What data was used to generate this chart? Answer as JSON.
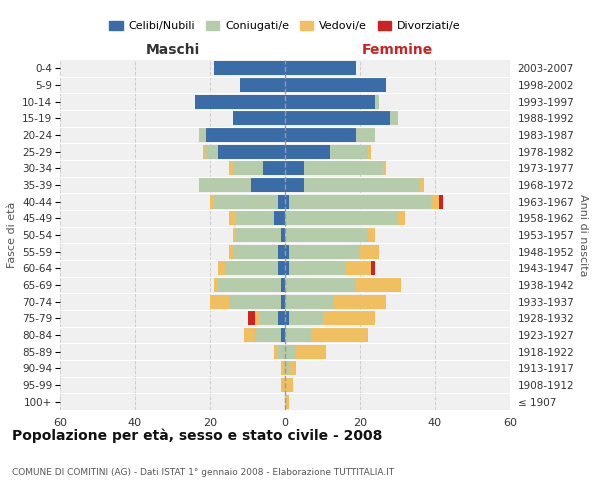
{
  "age_groups": [
    "100+",
    "95-99",
    "90-94",
    "85-89",
    "80-84",
    "75-79",
    "70-74",
    "65-69",
    "60-64",
    "55-59",
    "50-54",
    "45-49",
    "40-44",
    "35-39",
    "30-34",
    "25-29",
    "20-24",
    "15-19",
    "10-14",
    "5-9",
    "0-4"
  ],
  "birth_years": [
    "≤ 1907",
    "1908-1912",
    "1913-1917",
    "1918-1922",
    "1923-1927",
    "1928-1932",
    "1933-1937",
    "1938-1942",
    "1943-1947",
    "1948-1952",
    "1953-1957",
    "1958-1962",
    "1963-1967",
    "1968-1972",
    "1973-1977",
    "1978-1982",
    "1983-1987",
    "1988-1992",
    "1993-1997",
    "1998-2002",
    "2003-2007"
  ],
  "males": {
    "celibe": [
      0,
      0,
      0,
      0,
      1,
      2,
      1,
      1,
      2,
      2,
      1,
      3,
      2,
      9,
      6,
      18,
      21,
      14,
      24,
      12,
      19
    ],
    "coniugato": [
      0,
      0,
      0,
      2,
      7,
      5,
      14,
      17,
      14,
      12,
      12,
      10,
      17,
      14,
      8,
      3,
      2,
      0,
      0,
      0,
      0
    ],
    "vedovo": [
      0,
      1,
      1,
      1,
      3,
      1,
      5,
      1,
      2,
      1,
      1,
      2,
      1,
      0,
      1,
      1,
      0,
      0,
      0,
      0,
      0
    ],
    "divorziato": [
      0,
      0,
      0,
      0,
      0,
      2,
      0,
      0,
      0,
      0,
      0,
      0,
      0,
      0,
      0,
      0,
      0,
      0,
      0,
      0,
      0
    ]
  },
  "females": {
    "nubile": [
      0,
      0,
      0,
      0,
      0,
      1,
      0,
      0,
      1,
      1,
      0,
      0,
      1,
      5,
      5,
      12,
      19,
      28,
      24,
      27,
      19
    ],
    "coniugata": [
      0,
      0,
      1,
      3,
      7,
      9,
      13,
      19,
      15,
      19,
      22,
      30,
      38,
      31,
      21,
      10,
      5,
      2,
      1,
      0,
      0
    ],
    "vedova": [
      1,
      2,
      2,
      8,
      15,
      14,
      14,
      12,
      7,
      5,
      2,
      2,
      2,
      1,
      1,
      1,
      0,
      0,
      0,
      0,
      0
    ],
    "divorziata": [
      0,
      0,
      0,
      0,
      0,
      0,
      0,
      0,
      1,
      0,
      0,
      0,
      1,
      0,
      0,
      0,
      0,
      0,
      0,
      0,
      0
    ]
  },
  "colors": {
    "celibe_nubile": "#3a6da8",
    "coniugato_a": "#b5ccaa",
    "vedovo_a": "#f0c060",
    "divorziato_a": "#cc2222"
  },
  "title": "Popolazione per età, sesso e stato civile - 2008",
  "subtitle": "COMUNE DI COMITINI (AG) - Dati ISTAT 1° gennaio 2008 - Elaborazione TUTTITALIA.IT",
  "xlabel_left": "Maschi",
  "xlabel_right": "Femmine",
  "ylabel_left": "Fasce di età",
  "ylabel_right": "Anni di nascita",
  "xlim": 60,
  "bg_color": "#f0f0f0",
  "grid_color": "#cccccc",
  "legend_labels": [
    "Celibi/Nubili",
    "Coniugati/e",
    "Vedovi/e",
    "Divorziati/e"
  ]
}
